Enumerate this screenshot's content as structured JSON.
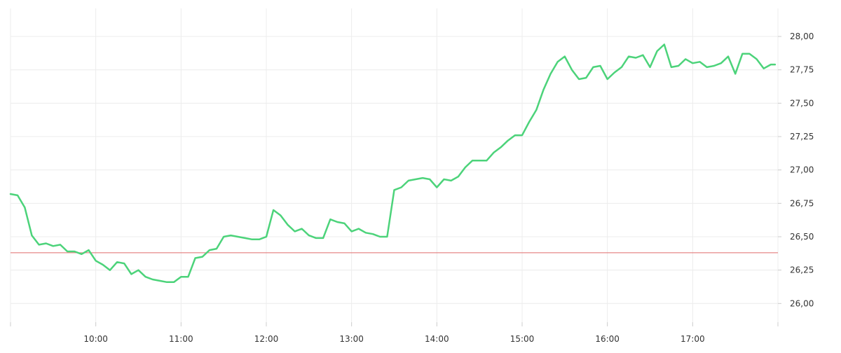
{
  "chart_data": {
    "type": "line",
    "x": [
      "09:00",
      "09:05",
      "09:10",
      "09:15",
      "09:20",
      "09:25",
      "09:30",
      "09:35",
      "09:40",
      "09:45",
      "09:50",
      "09:55",
      "10:00",
      "10:05",
      "10:10",
      "10:15",
      "10:20",
      "10:25",
      "10:30",
      "10:35",
      "10:40",
      "10:45",
      "10:50",
      "10:55",
      "11:00",
      "11:05",
      "11:10",
      "11:15",
      "11:20",
      "11:25",
      "11:30",
      "11:35",
      "11:40",
      "11:45",
      "11:50",
      "11:55",
      "12:00",
      "12:05",
      "12:10",
      "12:15",
      "12:20",
      "12:25",
      "12:30",
      "12:35",
      "12:40",
      "12:45",
      "12:50",
      "12:55",
      "13:00",
      "13:05",
      "13:10",
      "13:15",
      "13:20",
      "13:25",
      "13:30",
      "13:35",
      "13:40",
      "13:45",
      "13:50",
      "13:55",
      "14:00",
      "14:05",
      "14:10",
      "14:15",
      "14:20",
      "14:25",
      "14:30",
      "14:35",
      "14:40",
      "14:45",
      "14:50",
      "14:55",
      "15:00",
      "15:05",
      "15:10",
      "15:15",
      "15:20",
      "15:25",
      "15:30",
      "15:35",
      "15:40",
      "15:45",
      "15:50",
      "15:55",
      "16:00",
      "16:05",
      "16:10",
      "16:15",
      "16:20",
      "16:25",
      "16:30",
      "16:35",
      "16:40",
      "16:45",
      "16:50",
      "16:55",
      "17:00",
      "17:05",
      "17:10",
      "17:15",
      "17:20",
      "17:25",
      "17:30",
      "17:35",
      "17:40",
      "17:45",
      "17:50",
      "17:55",
      "17:58"
    ],
    "series": [
      {
        "values": [
          26.82,
          26.81,
          26.72,
          26.51,
          26.44,
          26.45,
          26.43,
          26.44,
          26.39,
          26.39,
          26.37,
          26.4,
          26.32,
          26.29,
          26.25,
          26.31,
          26.3,
          26.22,
          26.25,
          26.2,
          26.18,
          26.17,
          26.16,
          26.16,
          26.2,
          26.2,
          26.34,
          26.35,
          26.4,
          26.41,
          26.5,
          26.51,
          26.5,
          26.49,
          26.48,
          26.48,
          26.5,
          26.7,
          26.66,
          26.59,
          26.54,
          26.56,
          26.51,
          26.49,
          26.49,
          26.63,
          26.61,
          26.6,
          26.54,
          26.56,
          26.53,
          26.52,
          26.5,
          26.5,
          26.85,
          26.87,
          26.92,
          26.93,
          26.94,
          26.93,
          26.87,
          26.93,
          26.92,
          26.95,
          27.02,
          27.07,
          27.07,
          27.07,
          27.13,
          27.17,
          27.22,
          27.26,
          27.26,
          27.36,
          27.45,
          27.6,
          27.72,
          27.81,
          27.85,
          27.75,
          27.68,
          27.69,
          27.77,
          27.78,
          27.68,
          27.73,
          27.77,
          27.85,
          27.84,
          27.86,
          27.77,
          27.89,
          27.94,
          27.77,
          27.78,
          27.83,
          27.8,
          27.81,
          27.77,
          27.78,
          27.8,
          27.85,
          27.72,
          27.87,
          27.87,
          27.83,
          27.76,
          27.79,
          27.79
        ],
        "color": "#4cd37a"
      }
    ],
    "reference_line": {
      "value": 26.38,
      "color": "#e06c6c"
    },
    "x_ticks": [
      "10:00",
      "11:00",
      "12:00",
      "13:00",
      "14:00",
      "15:00",
      "16:00",
      "17:00"
    ],
    "y_ticks": [
      "26,00",
      "26,25",
      "26,50",
      "26,75",
      "27,00",
      "27,25",
      "27,50",
      "27,75",
      "28,00"
    ],
    "y_tick_values": [
      26.0,
      26.25,
      26.5,
      26.75,
      27.0,
      27.25,
      27.5,
      27.75,
      28.0
    ],
    "ylim": [
      25.86,
      28.21
    ],
    "xlim": [
      "09:00",
      "18:00"
    ],
    "grid": true,
    "y_axis_side": "right"
  }
}
